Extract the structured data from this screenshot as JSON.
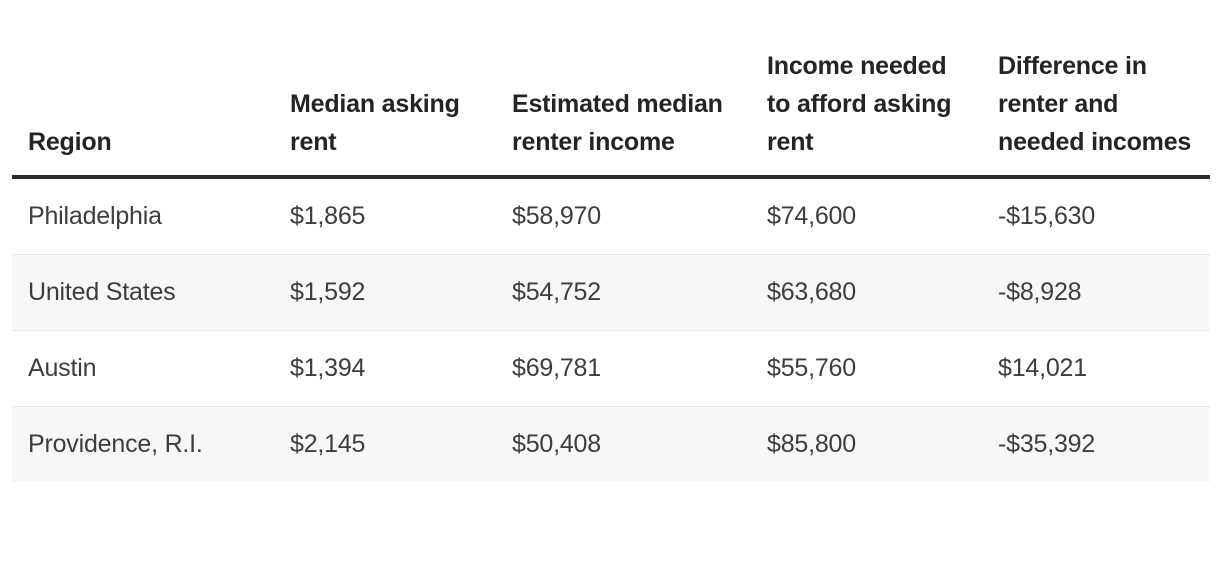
{
  "chart_data": {
    "type": "table",
    "columns": [
      "Region",
      "Median asking rent",
      "Estimated median renter income",
      "Income needed to afford asking rent",
      "Difference in renter and needed incomes"
    ],
    "rows": [
      [
        "Philadelphia",
        "$1,865",
        "$58,970",
        "$74,600",
        "-$15,630"
      ],
      [
        "United States",
        "$1,592",
        "$54,752",
        "$63,680",
        "-$8,928"
      ],
      [
        "Austin",
        "$1,394",
        "$69,781",
        "$55,760",
        "$14,021"
      ],
      [
        "Providence, R.I.",
        "$2,145",
        "$50,408",
        "$85,800",
        "-$35,392"
      ]
    ],
    "layout_hints": {
      "header_alignment": "bottom-left",
      "cell_alignment": "left",
      "zebra_striping": "even rows"
    }
  },
  "colors": {
    "background": "#ffffff",
    "header_text": "#242424",
    "body_text": "#3d3d3d",
    "header_rule": "#2b2b2b",
    "row_divider": "#e8e8e8",
    "zebra_row": "#f7f7f7"
  }
}
